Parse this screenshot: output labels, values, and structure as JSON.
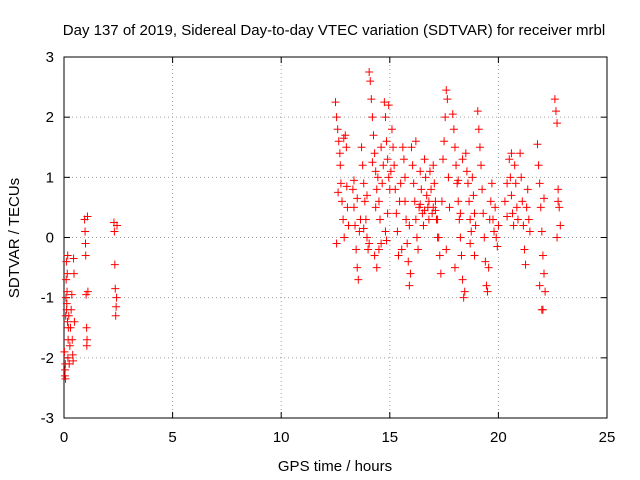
{
  "chart_data": {
    "type": "scatter",
    "title": "Day 137 of 2019, Sidereal Day-to-day VTEC variation (SDTVAR) for receiver mrbl",
    "xlabel": "GPS time / hours",
    "ylabel": "SDTVAR / TECUs",
    "xlim": [
      0,
      25
    ],
    "ylim": [
      -3,
      3
    ],
    "xticks": [
      "0",
      "5",
      "10",
      "15",
      "20",
      "25"
    ],
    "yticks": [
      "-3",
      "-2",
      "-1",
      "0",
      "1",
      "2",
      "3"
    ],
    "grid": true,
    "marker": "+",
    "color": "#ff0000",
    "series": [
      {
        "name": "SDTVAR",
        "points": [
          [
            0.02,
            -1.9
          ],
          [
            0.04,
            -2.3
          ],
          [
            0.05,
            -2.2
          ],
          [
            0.06,
            -2.1
          ],
          [
            0.07,
            -2.35
          ],
          [
            0.08,
            -1.3
          ],
          [
            0.09,
            -1.0
          ],
          [
            0.1,
            -0.7
          ],
          [
            0.11,
            -0.4
          ],
          [
            0.12,
            -1.2
          ],
          [
            0.13,
            -1.1
          ],
          [
            0.14,
            -0.9
          ],
          [
            0.15,
            -0.6
          ],
          [
            0.16,
            -1.4
          ],
          [
            0.17,
            -0.3
          ],
          [
            0.18,
            -2.0
          ],
          [
            0.19,
            -1.7
          ],
          [
            0.2,
            -1.5
          ],
          [
            0.22,
            -1.3
          ],
          [
            0.24,
            -2.1
          ],
          [
            0.27,
            -1.8
          ],
          [
            0.3,
            -1.5
          ],
          [
            0.33,
            -1.2
          ],
          [
            0.36,
            -0.95
          ],
          [
            0.38,
            -1.7
          ],
          [
            0.4,
            -1.95
          ],
          [
            0.42,
            -2.05
          ],
          [
            0.44,
            -0.35
          ],
          [
            0.46,
            -0.6
          ],
          [
            0.48,
            -1.4
          ],
          [
            0.95,
            0.3
          ],
          [
            0.97,
            0.1
          ],
          [
            0.99,
            -0.1
          ],
          [
            1.0,
            -0.3
          ],
          [
            1.02,
            -0.95
          ],
          [
            1.04,
            -1.5
          ],
          [
            1.05,
            -1.8
          ],
          [
            1.06,
            -1.7
          ],
          [
            1.08,
            0.35
          ],
          [
            1.1,
            -0.9
          ],
          [
            2.3,
            0.25
          ],
          [
            2.32,
            0.1
          ],
          [
            2.34,
            -0.45
          ],
          [
            2.36,
            -0.85
          ],
          [
            2.38,
            -1.3
          ],
          [
            2.4,
            -1.15
          ],
          [
            2.42,
            -1.0
          ],
          [
            2.44,
            0.2
          ],
          [
            12.5,
            2.25
          ],
          [
            12.55,
            2.0
          ],
          [
            12.6,
            1.8
          ],
          [
            12.65,
            1.6
          ],
          [
            12.7,
            1.4
          ],
          [
            12.75,
            0.9
          ],
          [
            12.8,
            0.6
          ],
          [
            12.85,
            0.3
          ],
          [
            12.9,
            0.0
          ],
          [
            12.95,
            1.7
          ],
          [
            13.0,
            1.5
          ],
          [
            13.05,
            0.5
          ],
          [
            13.1,
            0.2
          ],
          [
            12.55,
            -0.1
          ],
          [
            12.62,
            0.75
          ],
          [
            12.72,
            1.2
          ],
          [
            12.88,
            1.65
          ],
          [
            13.02,
            0.85
          ],
          [
            13.3,
            0.8
          ],
          [
            13.35,
            0.5
          ],
          [
            13.4,
            0.2
          ],
          [
            13.45,
            -0.2
          ],
          [
            13.5,
            -0.5
          ],
          [
            13.55,
            -0.7
          ],
          [
            13.6,
            0.1
          ],
          [
            13.65,
            0.3
          ],
          [
            13.35,
            0.95
          ],
          [
            13.5,
            0.65
          ],
          [
            13.7,
            1.5
          ],
          [
            13.75,
            1.2
          ],
          [
            13.8,
            0.9
          ],
          [
            13.85,
            0.6
          ],
          [
            13.9,
            0.3
          ],
          [
            13.95,
            0.0
          ],
          [
            14.0,
            -0.2
          ],
          [
            14.05,
            -0.1
          ],
          [
            13.8,
            0.15
          ],
          [
            13.95,
            0.7
          ],
          [
            14.05,
            2.75
          ],
          [
            14.1,
            2.6
          ],
          [
            14.15,
            2.3
          ],
          [
            14.2,
            2.0
          ],
          [
            14.25,
            1.7
          ],
          [
            14.3,
            1.4
          ],
          [
            14.35,
            1.1
          ],
          [
            14.4,
            0.8
          ],
          [
            14.45,
            1.0
          ],
          [
            14.5,
            0.6
          ],
          [
            14.55,
            0.3
          ],
          [
            14.6,
            -0.1
          ],
          [
            14.3,
            -0.3
          ],
          [
            14.4,
            -0.5
          ],
          [
            14.5,
            -0.2
          ],
          [
            14.65,
            0.9
          ],
          [
            14.7,
            1.2
          ],
          [
            14.2,
            1.25
          ],
          [
            14.35,
            0.5
          ],
          [
            14.6,
            1.5
          ],
          [
            14.75,
            2.25
          ],
          [
            14.8,
            2.0
          ],
          [
            14.85,
            1.6
          ],
          [
            14.9,
            1.3
          ],
          [
            14.95,
            1.0
          ],
          [
            15.0,
            0.8
          ],
          [
            14.8,
            0.1
          ],
          [
            14.85,
            -0.05
          ],
          [
            14.9,
            0.4
          ],
          [
            15.05,
            1.1
          ],
          [
            14.95,
            2.2
          ],
          [
            15.1,
            1.8
          ],
          [
            15.15,
            1.5
          ],
          [
            15.2,
            1.2
          ],
          [
            15.25,
            0.8
          ],
          [
            15.3,
            0.4
          ],
          [
            15.35,
            0.1
          ],
          [
            15.4,
            -0.3
          ],
          [
            15.45,
            0.6
          ],
          [
            15.5,
            0.9
          ],
          [
            15.55,
            -0.2
          ],
          [
            15.6,
            1.5
          ],
          [
            15.65,
            1.3
          ],
          [
            15.7,
            0.6
          ],
          [
            15.75,
            0.3
          ],
          [
            15.8,
            -0.1
          ],
          [
            15.85,
            -0.4
          ],
          [
            15.9,
            -0.8
          ],
          [
            15.95,
            -0.6
          ],
          [
            15.7,
            1.0
          ],
          [
            15.9,
            0.2
          ],
          [
            16.0,
            1.5
          ],
          [
            16.05,
            1.2
          ],
          [
            16.1,
            0.9
          ],
          [
            16.15,
            0.6
          ],
          [
            16.2,
            0.3
          ],
          [
            16.25,
            0.0
          ],
          [
            16.3,
            -0.2
          ],
          [
            16.35,
            0.5
          ],
          [
            16.4,
            1.1
          ],
          [
            16.45,
            0.8
          ],
          [
            16.5,
            0.4
          ],
          [
            16.55,
            0.2
          ],
          [
            16.6,
            1.3
          ],
          [
            16.65,
            1.0
          ],
          [
            16.7,
            0.7
          ],
          [
            16.75,
            0.5
          ],
          [
            16.8,
            0.3
          ],
          [
            16.85,
            1.1
          ],
          [
            16.9,
            0.8
          ],
          [
            16.95,
            0.4
          ],
          [
            17.0,
            1.2
          ],
          [
            17.05,
            0.9
          ],
          [
            17.1,
            0.6
          ],
          [
            17.15,
            0.3
          ],
          [
            17.2,
            0.0
          ],
          [
            16.2,
            1.6
          ],
          [
            16.4,
            0.55
          ],
          [
            16.6,
            0.45
          ],
          [
            16.8,
            0.6
          ],
          [
            17.0,
            0.5
          ],
          [
            17.1,
            0.45
          ],
          [
            17.2,
            0.3
          ],
          [
            17.25,
            0.0
          ],
          [
            17.3,
            -0.3
          ],
          [
            17.35,
            -0.6
          ],
          [
            17.4,
            0.6
          ],
          [
            17.45,
            1.3
          ],
          [
            17.5,
            1.6
          ],
          [
            17.55,
            2.0
          ],
          [
            17.6,
            2.45
          ],
          [
            17.65,
            2.3
          ],
          [
            17.7,
            1.0
          ],
          [
            17.75,
            0.5
          ],
          [
            17.6,
            -0.2
          ],
          [
            17.9,
            2.05
          ],
          [
            17.95,
            1.8
          ],
          [
            18.0,
            1.5
          ],
          [
            18.05,
            1.2
          ],
          [
            18.1,
            0.9
          ],
          [
            18.15,
            0.6
          ],
          [
            18.2,
            0.3
          ],
          [
            18.25,
            0.0
          ],
          [
            18.3,
            -0.3
          ],
          [
            18.35,
            -0.7
          ],
          [
            18.4,
            -1.0
          ],
          [
            18.45,
            -0.9
          ],
          [
            18.0,
            -0.5
          ],
          [
            18.15,
            0.95
          ],
          [
            18.25,
            0.4
          ],
          [
            18.35,
            1.3
          ],
          [
            18.5,
            1.4
          ],
          [
            18.55,
            1.1
          ],
          [
            18.6,
            0.9
          ],
          [
            18.65,
            0.6
          ],
          [
            18.7,
            0.3
          ],
          [
            18.75,
            0.1
          ],
          [
            18.8,
            1.0
          ],
          [
            18.85,
            0.7
          ],
          [
            18.9,
            0.4
          ],
          [
            18.95,
            0.2
          ],
          [
            18.7,
            -0.1
          ],
          [
            18.9,
            -0.3
          ],
          [
            19.05,
            2.1
          ],
          [
            19.1,
            1.8
          ],
          [
            19.15,
            1.5
          ],
          [
            19.2,
            1.2
          ],
          [
            19.25,
            0.8
          ],
          [
            19.3,
            0.4
          ],
          [
            19.35,
            0.0
          ],
          [
            19.4,
            -0.4
          ],
          [
            19.45,
            -0.8
          ],
          [
            19.5,
            -0.9
          ],
          [
            19.55,
            -0.5
          ],
          [
            19.6,
            0.3
          ],
          [
            19.65,
            0.6
          ],
          [
            19.7,
            0.9
          ],
          [
            19.75,
            0.3
          ],
          [
            19.8,
            0.1
          ],
          [
            19.85,
            0.5
          ],
          [
            19.9,
            0.0
          ],
          [
            19.95,
            -0.15
          ],
          [
            20.0,
            0.2
          ],
          [
            20.3,
            0.6
          ],
          [
            20.4,
            0.9
          ],
          [
            20.5,
            1.3
          ],
          [
            20.55,
            1.0
          ],
          [
            20.6,
            0.7
          ],
          [
            20.65,
            0.4
          ],
          [
            20.7,
            0.2
          ],
          [
            20.75,
            1.2
          ],
          [
            20.8,
            0.9
          ],
          [
            20.85,
            0.5
          ],
          [
            20.9,
            0.3
          ],
          [
            20.6,
            1.4
          ],
          [
            20.4,
            0.35
          ],
          [
            21.0,
            1.4
          ],
          [
            21.05,
            1.0
          ],
          [
            21.1,
            0.6
          ],
          [
            21.15,
            0.2
          ],
          [
            21.2,
            -0.2
          ],
          [
            21.25,
            -0.45
          ],
          [
            21.3,
            0.5
          ],
          [
            21.35,
            0.8
          ],
          [
            21.4,
            0.3
          ],
          [
            21.45,
            0.1
          ],
          [
            21.8,
            1.55
          ],
          [
            21.85,
            1.2
          ],
          [
            21.9,
            0.9
          ],
          [
            21.95,
            0.5
          ],
          [
            22.0,
            0.1
          ],
          [
            22.05,
            -0.3
          ],
          [
            22.1,
            -0.6
          ],
          [
            22.15,
            -0.9
          ],
          [
            22.0,
            -1.2
          ],
          [
            22.05,
            -1.2
          ],
          [
            21.9,
            -0.8
          ],
          [
            22.1,
            0.65
          ],
          [
            22.6,
            2.3
          ],
          [
            22.65,
            2.1
          ],
          [
            22.7,
            1.9
          ],
          [
            22.75,
            0.8
          ],
          [
            22.8,
            0.5
          ],
          [
            22.85,
            0.2
          ],
          [
            22.7,
            0.0
          ],
          [
            22.75,
            0.6
          ]
        ]
      }
    ]
  }
}
